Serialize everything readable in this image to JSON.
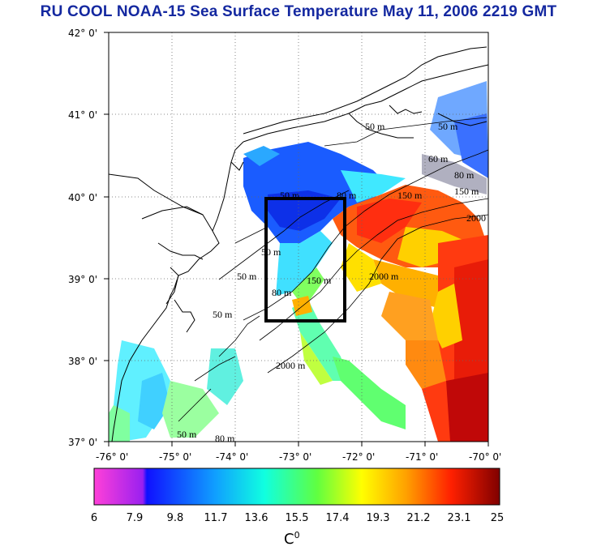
{
  "title": "RU COOL  NOAA-15 Sea Surface Temperature May 11, 2006 2219 GMT",
  "lon_labels": [
    "-76° 0'",
    "-75° 0'",
    "-74° 0'",
    "-73° 0'",
    "-72° 0'",
    "-71° 0'",
    "-70° 0'"
  ],
  "lat_labels": [
    "42° 0'",
    "41° 0'",
    "40° 0'",
    "39° 0'",
    "38° 0'",
    "37° 0'"
  ],
  "colorbar": {
    "ticks": [
      "6",
      "7.9",
      "9.8",
      "11.7",
      "13.6",
      "15.5",
      "17.4",
      "19.3",
      "21.2",
      "23.1",
      "25"
    ],
    "unit": "C",
    "unit_sup": "0",
    "range": [
      6,
      25
    ]
  },
  "contour_labels": [
    "50 m",
    "50 m",
    "60 m",
    "80 m",
    "150 m",
    "150 m",
    "2000",
    "2000 m",
    "50 m",
    "80 m",
    "150 m",
    "2000 m",
    "50 m",
    "50 m",
    "80 m",
    "50 m",
    "50 m",
    "80 m"
  ],
  "study_box": {
    "lon_min": -73.5,
    "lon_max": -72.3,
    "lat_min": 38.5,
    "lat_max": 40.0
  },
  "colors": {
    "title": "#1428a0",
    "box": "#000000",
    "land_line": "#000000"
  }
}
